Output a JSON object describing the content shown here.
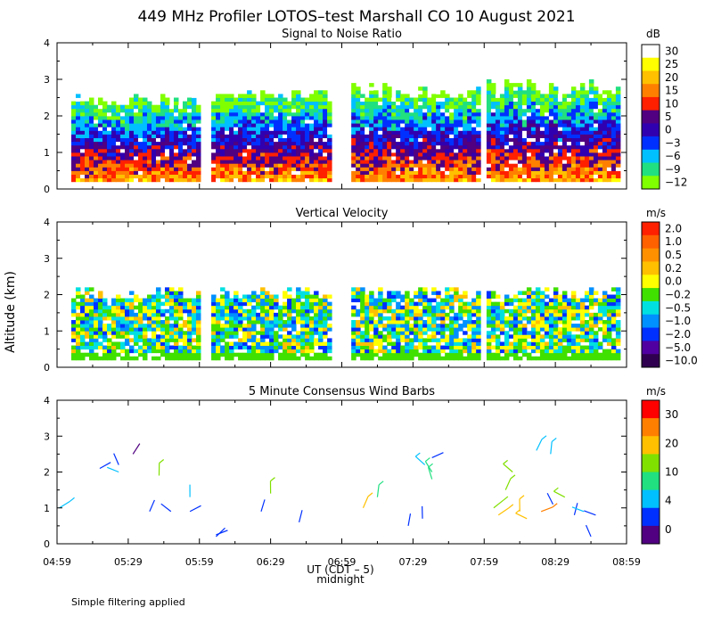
{
  "figure": {
    "title": "449 MHz Profiler LOTOS–test Marshall CO 10 August 2021",
    "ylabel": "Altitude (km)",
    "xlabel": "UT (CDT – 5)",
    "xlabel_note": "midnight",
    "footnote": "Simple filtering applied",
    "x_ticks": [
      "04:59",
      "05:29",
      "05:59",
      "06:29",
      "06:59",
      "07:29",
      "07:59",
      "08:29",
      "08:59"
    ],
    "y_ticks": [
      "0",
      "1",
      "2",
      "3",
      "4"
    ]
  },
  "chart_data": [
    {
      "type": "heatmap",
      "title": "Signal to Noise Ratio",
      "unit": "dB",
      "ylim": [
        0,
        4
      ],
      "xlim": [
        "04:59",
        "08:59"
      ],
      "colorbar_labels": [
        "30",
        "25",
        "20",
        "15",
        "10",
        "5",
        "0",
        "−3",
        "−6",
        "−9",
        "−12"
      ],
      "colorbar_colors": [
        "#ffffff",
        "#ffff00",
        "#ffc000",
        "#ff8000",
        "#ff2000",
        "#500080",
        "#3000b0",
        "#0030ff",
        "#00c0ff",
        "#20e080",
        "#80ff00"
      ],
      "data_segments": [
        [
          "05:05",
          "05:59"
        ],
        [
          "06:04",
          "06:53"
        ],
        [
          "07:03",
          "07:56"
        ],
        [
          "08:00",
          "08:56"
        ]
      ],
      "echo_top_km": [
        [
          2.2,
          2.6
        ],
        [
          2.3,
          2.7
        ],
        [
          2.4,
          2.9
        ],
        [
          2.5,
          3.0
        ]
      ]
    },
    {
      "type": "heatmap",
      "title": "Vertical Velocity",
      "unit": "m/s",
      "ylim": [
        0,
        4
      ],
      "xlim": [
        "04:59",
        "08:59"
      ],
      "colorbar_labels": [
        "2.0",
        "1.0",
        "0.5",
        "0.2",
        "0.0",
        "−0.2",
        "−0.5",
        "−1.0",
        "−2.0",
        "−5.0",
        "−10.0"
      ],
      "colorbar_colors": [
        "#ff2000",
        "#ff6000",
        "#ff9000",
        "#ffc000",
        "#ffff00",
        "#40e000",
        "#00e0e0",
        "#0090ff",
        "#0030ff",
        "#5000a0",
        "#300050"
      ],
      "data_segments": [
        [
          "05:05",
          "05:59"
        ],
        [
          "06:04",
          "06:53"
        ],
        [
          "07:03",
          "07:56"
        ],
        [
          "08:00",
          "08:56"
        ]
      ]
    },
    {
      "type": "scatter",
      "title": "5 Minute Consensus Wind Barbs",
      "unit": "m/s",
      "ylim": [
        0,
        4
      ],
      "xlim": [
        "04:59",
        "08:59"
      ],
      "colorbar_labels": [
        "30",
        "20",
        "10",
        "4",
        "0"
      ],
      "colorbar_colors": [
        "#ff0000",
        "#ff8000",
        "#ffc000",
        "#80e000",
        "#20e080",
        "#00c0ff",
        "#0030ff",
        "#500080"
      ],
      "barbs": [
        {
          "t": "05:00",
          "z": 1.0,
          "speed": 6
        },
        {
          "t": "05:17",
          "z": 2.1,
          "speed": 3
        },
        {
          "t": "05:25",
          "z": 2.2,
          "speed": 3
        },
        {
          "t": "05:25",
          "z": 2.0,
          "speed": 5
        },
        {
          "t": "05:31",
          "z": 2.5,
          "speed": 1
        },
        {
          "t": "05:38",
          "z": 0.9,
          "speed": 2
        },
        {
          "t": "05:42",
          "z": 1.9,
          "speed": 12
        },
        {
          "t": "05:47",
          "z": 0.9,
          "speed": 2
        },
        {
          "t": "05:55",
          "z": 1.3,
          "speed": 4
        },
        {
          "t": "05:55",
          "z": 0.9,
          "speed": 3
        },
        {
          "t": "06:06",
          "z": 0.2,
          "speed": 3
        },
        {
          "t": "06:06",
          "z": 0.25,
          "speed": 2
        },
        {
          "t": "06:25",
          "z": 0.9,
          "speed": 3
        },
        {
          "t": "06:29",
          "z": 1.4,
          "speed": 10
        },
        {
          "t": "06:41",
          "z": 0.6,
          "speed": 2
        },
        {
          "t": "07:08",
          "z": 1.0,
          "speed": 14
        },
        {
          "t": "07:14",
          "z": 1.3,
          "speed": 8
        },
        {
          "t": "07:27",
          "z": 0.5,
          "speed": 2
        },
        {
          "t": "07:33",
          "z": 0.7,
          "speed": 3
        },
        {
          "t": "07:34",
          "z": 2.2,
          "speed": 6
        },
        {
          "t": "07:37",
          "z": 2.0,
          "speed": 8
        },
        {
          "t": "07:37",
          "z": 1.8,
          "speed": 7
        },
        {
          "t": "07:37",
          "z": 2.4,
          "speed": 3
        },
        {
          "t": "08:03",
          "z": 1.0,
          "speed": 12
        },
        {
          "t": "08:05",
          "z": 0.8,
          "speed": 14
        },
        {
          "t": "08:08",
          "z": 1.5,
          "speed": 12
        },
        {
          "t": "08:11",
          "z": 2.0,
          "speed": 10
        },
        {
          "t": "08:14",
          "z": 0.9,
          "speed": 16
        },
        {
          "t": "08:17",
          "z": 0.7,
          "speed": 16
        },
        {
          "t": "08:21",
          "z": 2.6,
          "speed": 6
        },
        {
          "t": "08:23",
          "z": 0.9,
          "speed": 18
        },
        {
          "t": "08:27",
          "z": 2.5,
          "speed": 6
        },
        {
          "t": "08:28",
          "z": 1.1,
          "speed": 2
        },
        {
          "t": "08:33",
          "z": 1.3,
          "speed": 12
        },
        {
          "t": "08:37",
          "z": 0.8,
          "speed": 2
        },
        {
          "t": "08:41",
          "z": 0.9,
          "speed": 4
        },
        {
          "t": "08:44",
          "z": 0.2,
          "speed": 3
        },
        {
          "t": "08:46",
          "z": 0.8,
          "speed": 3
        }
      ]
    }
  ]
}
